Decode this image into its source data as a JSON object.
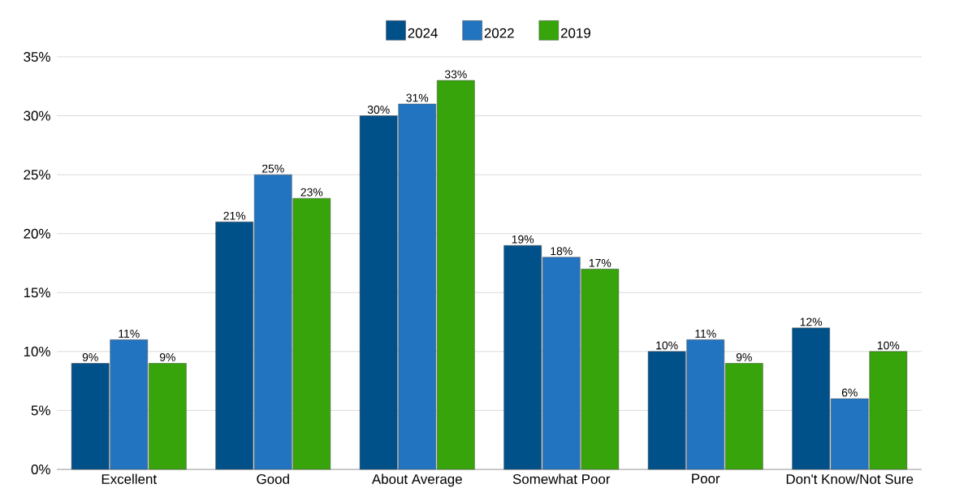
{
  "chart_data": {
    "type": "bar",
    "categories": [
      "Excellent",
      "Good",
      "About Average",
      "Somewhat Poor",
      "Poor",
      "Don't Know/Not Sure"
    ],
    "series": [
      {
        "name": "2024",
        "color": "#00508a",
        "values": [
          9,
          21,
          30,
          19,
          10,
          12
        ],
        "value_labels": [
          "9%",
          "21%",
          "30%",
          "19%",
          "10%",
          "12%"
        ]
      },
      {
        "name": "2022",
        "color": "#2274c0",
        "values": [
          11,
          25,
          31,
          18,
          11,
          6
        ],
        "value_labels": [
          "11%",
          "25%",
          "31%",
          "18%",
          "11%",
          "6%"
        ]
      },
      {
        "name": "2019",
        "color": "#36a40a",
        "values": [
          9,
          23,
          33,
          17,
          9,
          10
        ],
        "value_labels": [
          "9%",
          "23%",
          "33%",
          "17%",
          "9%",
          "10%"
        ]
      }
    ],
    "ylim": [
      0,
      35
    ],
    "yticks": [
      {
        "value": 0,
        "label": "0%"
      },
      {
        "value": 5,
        "label": "5%"
      },
      {
        "value": 10,
        "label": "10%"
      },
      {
        "value": 15,
        "label": "15%"
      },
      {
        "value": 20,
        "label": "20%"
      },
      {
        "value": 25,
        "label": "25%"
      },
      {
        "value": 30,
        "label": "30%"
      },
      {
        "value": 35,
        "label": "35%"
      }
    ],
    "grid": "y",
    "legend": "top"
  }
}
